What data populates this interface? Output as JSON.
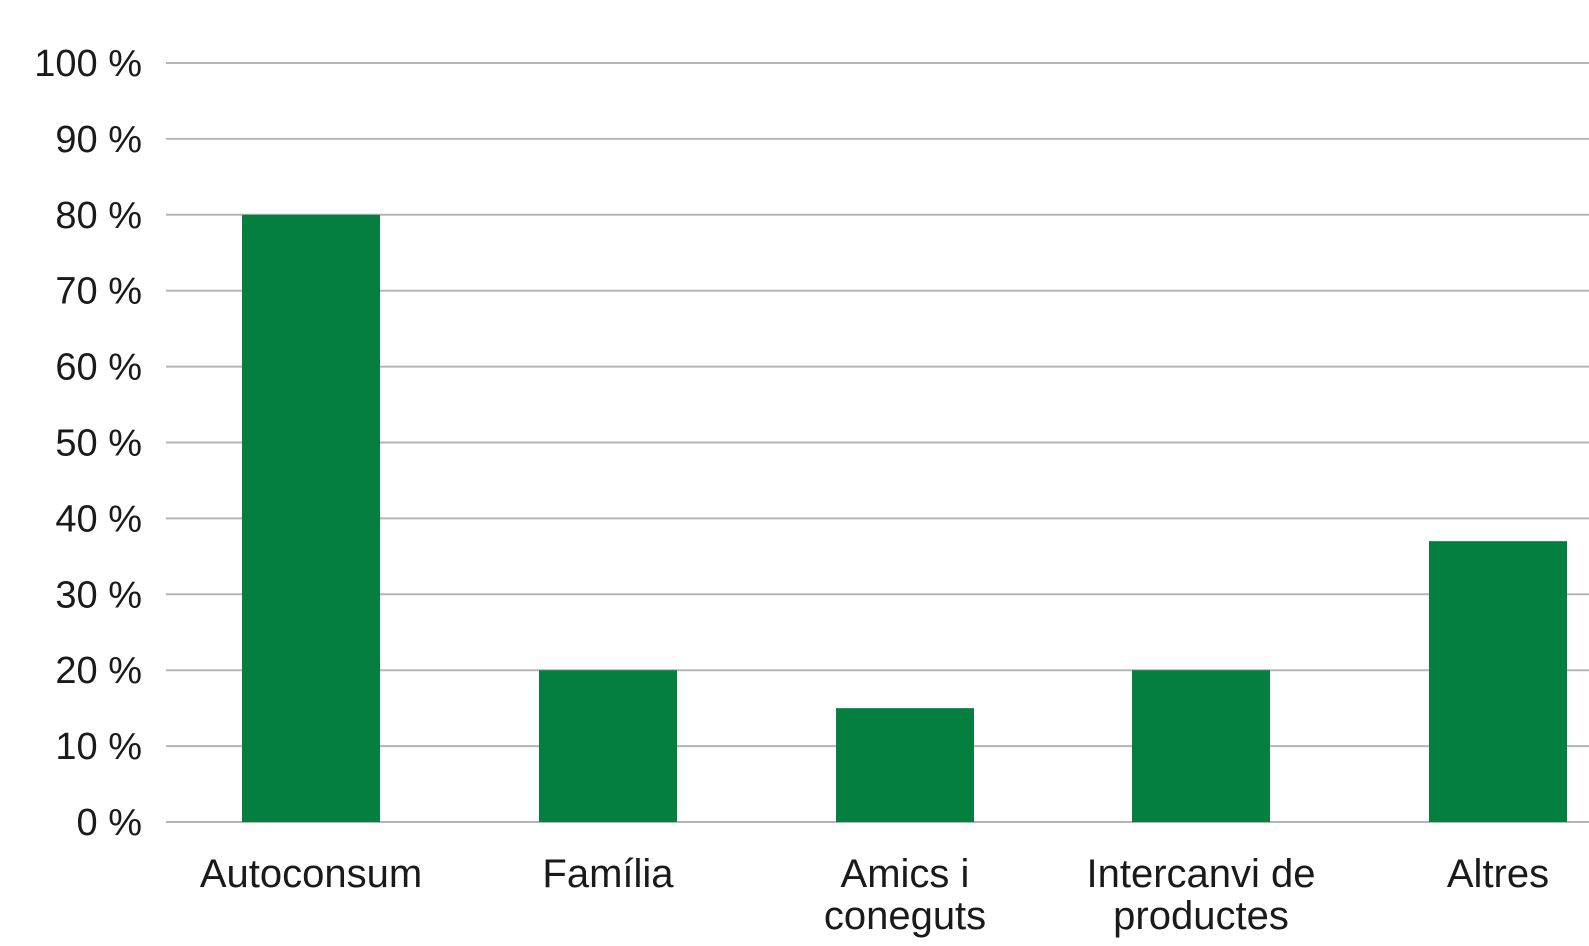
{
  "chart_data": {
    "type": "bar",
    "categories": [
      "Autoconsum",
      "Família",
      "Amics i coneguts",
      "Intercanvi de productes",
      "Altres"
    ],
    "category_lines": [
      [
        "Autoconsum"
      ],
      [
        "Família"
      ],
      [
        "Amics i",
        "coneguts"
      ],
      [
        "Intercanvi de",
        "productes"
      ],
      [
        "Altres"
      ]
    ],
    "values": [
      80,
      20,
      15,
      20,
      37
    ],
    "ylim": [
      0,
      100
    ],
    "yticks": [
      0,
      10,
      20,
      30,
      40,
      50,
      60,
      70,
      80,
      90,
      100
    ],
    "ytick_labels": [
      "0 %",
      "10 %",
      "20 %",
      "30 %",
      "40 %",
      "50 %",
      "60 %",
      "70 %",
      "80 %",
      "90 %",
      "100 %"
    ],
    "bar_color": "#047F3F",
    "grid_color": "#B5B5B5",
    "grid": true,
    "title": "",
    "xlabel": "",
    "ylabel": ""
  }
}
